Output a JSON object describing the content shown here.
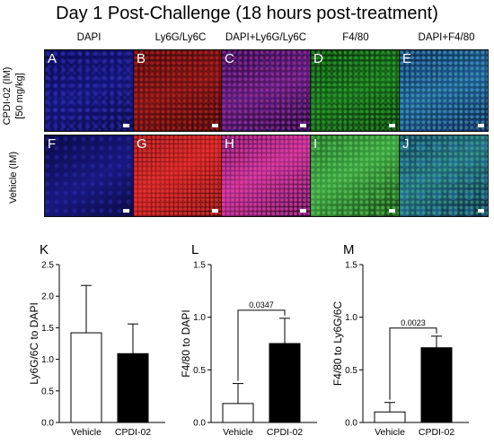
{
  "title": "Day 1 Post-Challenge (18 hours post-treatment)",
  "columns": [
    "DAPI",
    "Ly6G/Ly6C",
    "DAPI+Ly6G/Ly6C",
    "F4/80",
    "DAPI+F4/80"
  ],
  "rows": [
    {
      "label_line1": "CPDI-02 (IM)",
      "label_line2": "[50 mg/kg]",
      "panels": [
        "A",
        "B",
        "C",
        "D",
        "E"
      ]
    },
    {
      "label_line1": "Vehicle (IM)",
      "label_line2": "",
      "panels": [
        "F",
        "G",
        "H",
        "I",
        "J"
      ]
    }
  ],
  "charts": [
    {
      "letter": "K"
    },
    {
      "letter": "L",
      "pvalue": "0.0347"
    },
    {
      "letter": "M",
      "pvalue": "0.0023"
    }
  ],
  "chart_data": [
    {
      "type": "bar",
      "categories": [
        "Vehicle",
        "CPDI-02"
      ],
      "values": [
        1.42,
        1.09
      ],
      "errors": [
        0.75,
        0.47
      ],
      "ylabel": "Ly6G/6C to DAPI",
      "ylim": [
        0,
        2.5
      ],
      "yticks": [
        "0.0",
        "0.5",
        "1.0",
        "1.5",
        "2.0",
        "2.5"
      ],
      "fills": [
        "#ffffff",
        "#000000"
      ]
    },
    {
      "type": "bar",
      "categories": [
        "Vehicle",
        "CPDI-02"
      ],
      "values": [
        0.18,
        0.75
      ],
      "errors": [
        0.19,
        0.24
      ],
      "ylabel": "F4/80 to DAPI",
      "ylim": [
        0,
        1.5
      ],
      "yticks": [
        "0.0",
        "0.5",
        "1.0",
        "1.5"
      ],
      "fills": [
        "#ffffff",
        "#000000"
      ]
    },
    {
      "type": "bar",
      "categories": [
        "Vehicle",
        "CPDI-02"
      ],
      "values": [
        0.1,
        0.71
      ],
      "errors": [
        0.09,
        0.11
      ],
      "ylabel": "F4/80 to Ly6G/6C",
      "ylim": [
        0,
        1.5
      ],
      "yticks": [
        "0.0",
        "0.5",
        "1.0",
        "1.5"
      ],
      "fills": [
        "#ffffff",
        "#000000"
      ]
    }
  ]
}
